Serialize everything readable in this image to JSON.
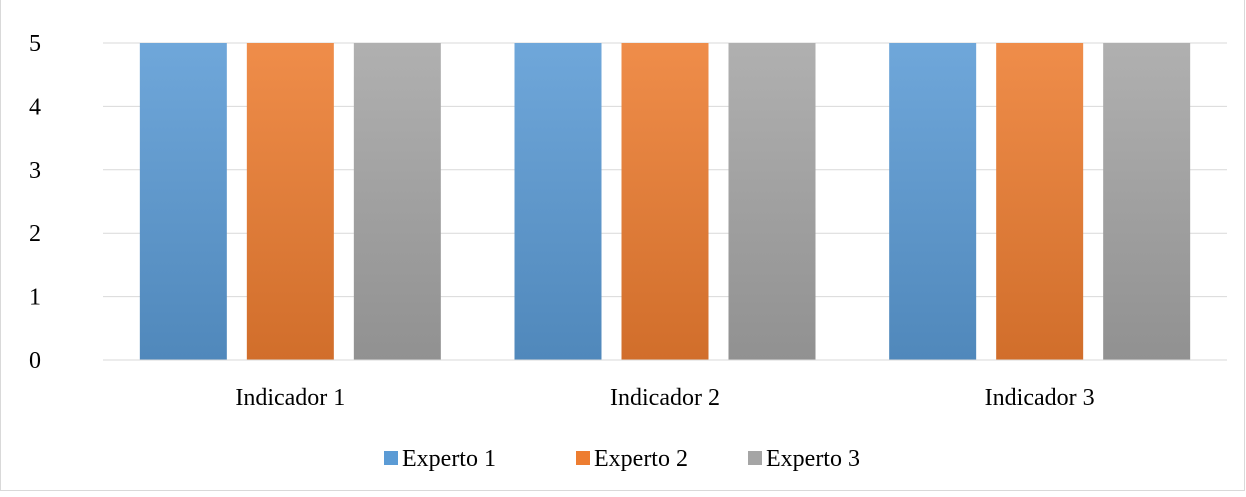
{
  "chart_data": {
    "type": "bar",
    "title": "",
    "xlabel": "",
    "ylabel": "",
    "categories": [
      "Indicador 1",
      "Indicador 2",
      "Indicador 3"
    ],
    "series": [
      {
        "name": "Experto 1",
        "values": [
          5,
          5,
          5
        ],
        "color": "#5b9bd5"
      },
      {
        "name": "Experto 2",
        "values": [
          5,
          5,
          5
        ],
        "color": "#ed7d31"
      },
      {
        "name": "Experto 3",
        "values": [
          5,
          5,
          5
        ],
        "color": "#a5a5a5"
      }
    ],
    "ylim": [
      0,
      5
    ],
    "yticks": [
      "0",
      "1",
      "2",
      "3",
      "4",
      "5"
    ],
    "grid": true,
    "legend_position": "bottom"
  }
}
